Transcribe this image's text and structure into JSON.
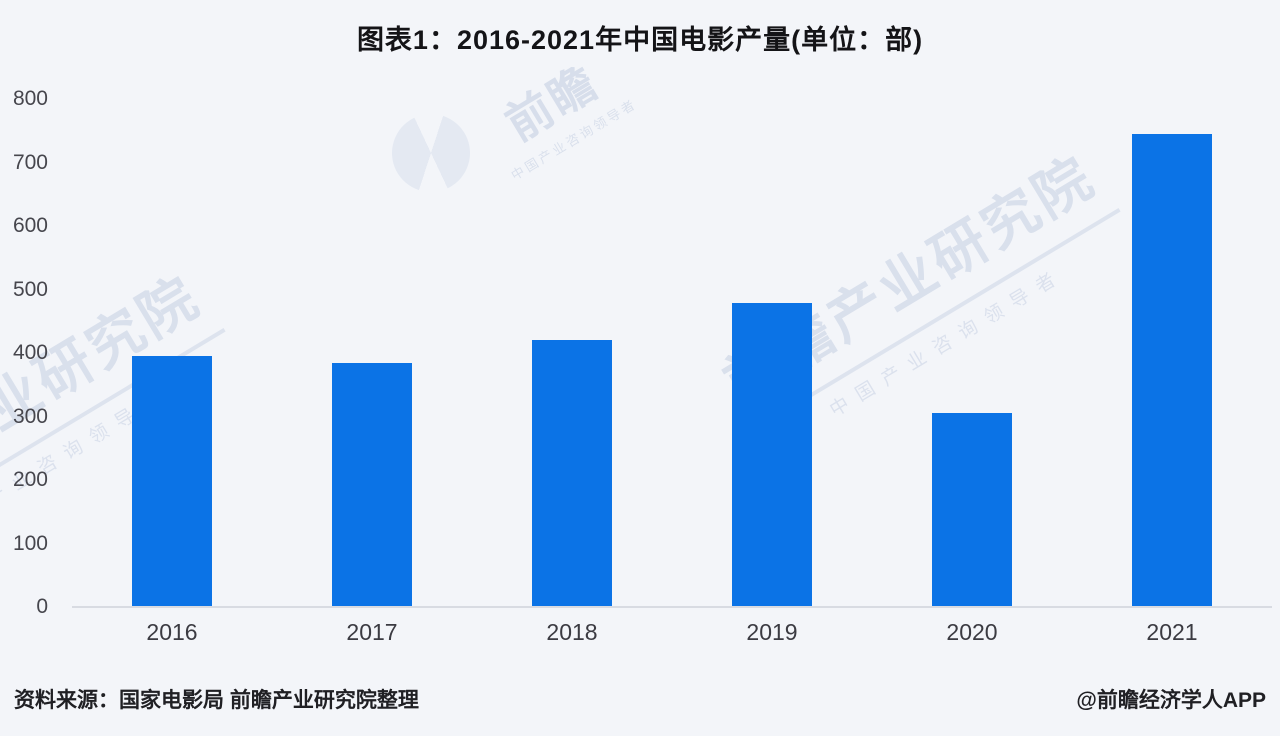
{
  "title": "图表1：2016-2021年中国电影产量(单位：部)",
  "chart_data": {
    "type": "bar",
    "title": "图表1：2016-2021年中国电影产量(单位：部)",
    "categories": [
      "2016",
      "2017",
      "2018",
      "2019",
      "2020",
      "2021"
    ],
    "values": [
      395,
      385,
      421,
      478,
      305,
      745
    ],
    "unit": "部",
    "xlabel": "",
    "ylabel": "",
    "ylim": [
      0,
      800
    ],
    "yticks": [
      0,
      100,
      200,
      300,
      400,
      500,
      600,
      700,
      800
    ],
    "grid": false,
    "legend": "none",
    "bar_color": "#0b73e6",
    "background_color": "#f3f5f9",
    "axis_line_color": "#d8dbe2"
  },
  "footer": {
    "source": "资料来源：国家电影局 前瞻产业研究院整理",
    "credit": "@前瞻经济学人APP"
  },
  "watermark": {
    "main": "前瞻产业研究院",
    "tagline": "中国产业咨询领导者",
    "logo_label": "前瞻",
    "color": "#c5cfe2"
  }
}
